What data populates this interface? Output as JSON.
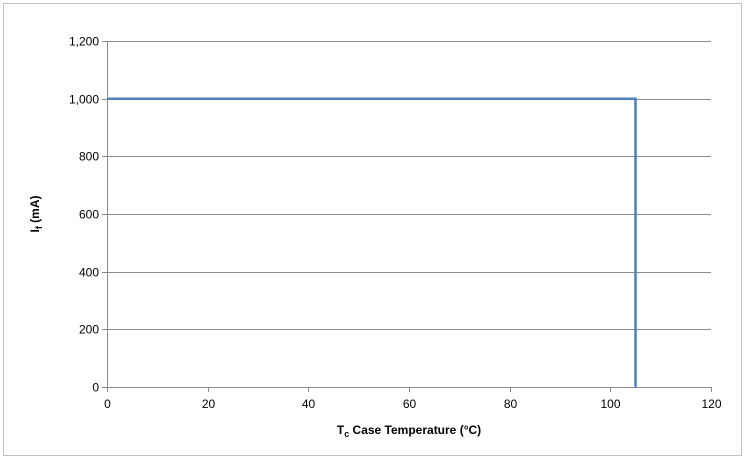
{
  "chart_data": {
    "type": "line",
    "title": "",
    "xlabel": {
      "main": "T",
      "sub": "c",
      "rest": " Case Temperature (°C)"
    },
    "ylabel": {
      "main": "I",
      "sub": "f",
      "rest": " (mA)"
    },
    "xlim": [
      0,
      120
    ],
    "ylim": [
      0,
      1200
    ],
    "xticks": [
      0,
      20,
      40,
      60,
      80,
      100,
      120
    ],
    "yticks": [
      0,
      200,
      400,
      600,
      800,
      1000,
      1200
    ],
    "xtick_labels": [
      "0",
      "20",
      "40",
      "60",
      "80",
      "100",
      "120"
    ],
    "ytick_labels": [
      "0",
      "200",
      "400",
      "600",
      "800",
      "1,000",
      "1,200"
    ],
    "grid": "horizontal",
    "legend": "none",
    "series": [
      {
        "color": "#4f81bd",
        "x": [
          0,
          105,
          105
        ],
        "y": [
          1000,
          1000,
          0
        ]
      }
    ]
  }
}
